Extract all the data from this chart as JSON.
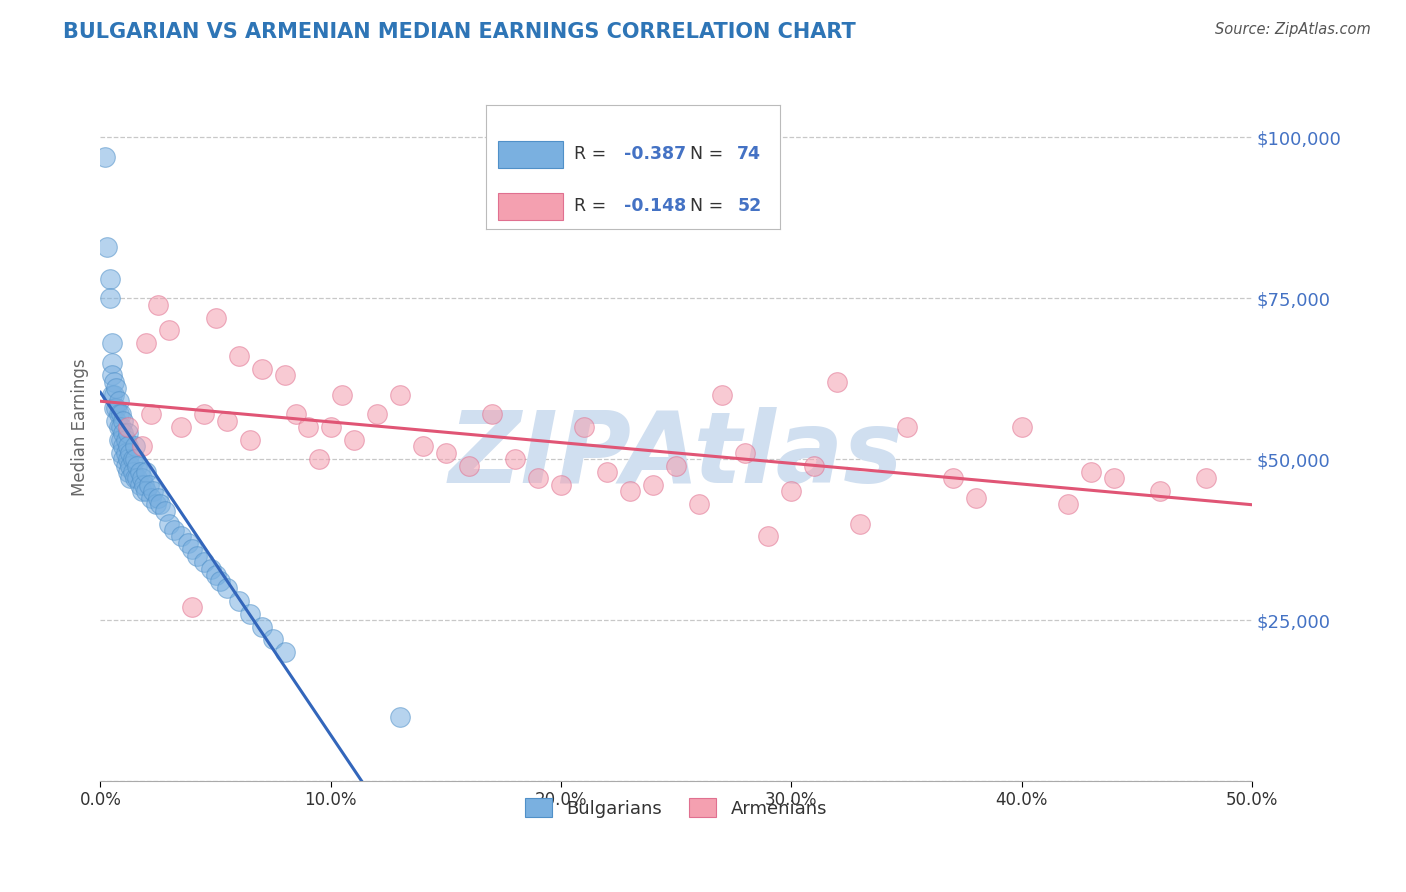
{
  "title": "BULGARIAN VS ARMENIAN MEDIAN EARNINGS CORRELATION CHART",
  "source": "Source: ZipAtlas.com",
  "ylabel": "Median Earnings",
  "xlim": [
    0.0,
    0.5
  ],
  "ylim": [
    0,
    110000
  ],
  "yticks": [
    0,
    25000,
    50000,
    75000,
    100000
  ],
  "ytick_labels": [
    "",
    "$25,000",
    "$50,000",
    "$75,000",
    "$100,000"
  ],
  "xticks": [
    0.0,
    0.1,
    0.2,
    0.3,
    0.4,
    0.5
  ],
  "xtick_labels": [
    "0.0%",
    "10.0%",
    "20.0%",
    "30.0%",
    "40.0%",
    "50.0%"
  ],
  "bg_color": "#ffffff",
  "grid_color": "#c8c8c8",
  "title_color": "#2e75b6",
  "axis_label_color": "#666666",
  "tick_label_color_y": "#4472c4",
  "tick_label_color_x": "#333333",
  "watermark": "ZIPAtlas",
  "watermark_color": "#d0dff0",
  "series1_color": "#7ab0e0",
  "series2_color": "#f4a0b0",
  "series1_edge": "#5090c8",
  "series2_edge": "#e07090",
  "trendline1_color": "#3366bb",
  "trendline2_color": "#e05575",
  "series1_label": "Bulgarians",
  "series2_label": "Armenians",
  "legend_text_color": "#333333",
  "legend_value_color": "#4472c4",
  "bulgarians_x": [
    0.002,
    0.003,
    0.004,
    0.004,
    0.005,
    0.005,
    0.005,
    0.005,
    0.006,
    0.006,
    0.006,
    0.007,
    0.007,
    0.007,
    0.008,
    0.008,
    0.008,
    0.008,
    0.009,
    0.009,
    0.009,
    0.009,
    0.01,
    0.01,
    0.01,
    0.01,
    0.011,
    0.011,
    0.011,
    0.012,
    0.012,
    0.012,
    0.012,
    0.013,
    0.013,
    0.013,
    0.014,
    0.014,
    0.015,
    0.015,
    0.015,
    0.016,
    0.016,
    0.017,
    0.017,
    0.018,
    0.018,
    0.019,
    0.02,
    0.02,
    0.021,
    0.022,
    0.023,
    0.024,
    0.025,
    0.026,
    0.028,
    0.03,
    0.032,
    0.035,
    0.038,
    0.04,
    0.042,
    0.045,
    0.048,
    0.05,
    0.052,
    0.055,
    0.06,
    0.065,
    0.07,
    0.075,
    0.08,
    0.13
  ],
  "bulgarians_y": [
    97000,
    83000,
    78000,
    75000,
    68000,
    65000,
    63000,
    60000,
    62000,
    60000,
    58000,
    61000,
    58000,
    56000,
    59000,
    57000,
    55000,
    53000,
    57000,
    55000,
    53000,
    51000,
    56000,
    54000,
    52000,
    50000,
    53000,
    51000,
    49000,
    54000,
    52000,
    50000,
    48000,
    51000,
    49000,
    47000,
    50000,
    48000,
    52000,
    50000,
    47000,
    49000,
    47000,
    48000,
    46000,
    47000,
    45000,
    46000,
    48000,
    45000,
    46000,
    44000,
    45000,
    43000,
    44000,
    43000,
    42000,
    40000,
    39000,
    38000,
    37000,
    36000,
    35000,
    34000,
    33000,
    32000,
    31000,
    30000,
    28000,
    26000,
    24000,
    22000,
    20000,
    10000
  ],
  "armenians_x": [
    0.012,
    0.018,
    0.02,
    0.022,
    0.025,
    0.03,
    0.035,
    0.04,
    0.045,
    0.05,
    0.055,
    0.06,
    0.065,
    0.07,
    0.08,
    0.085,
    0.09,
    0.095,
    0.1,
    0.105,
    0.11,
    0.12,
    0.13,
    0.14,
    0.15,
    0.16,
    0.17,
    0.18,
    0.19,
    0.2,
    0.21,
    0.22,
    0.23,
    0.24,
    0.25,
    0.26,
    0.27,
    0.28,
    0.29,
    0.3,
    0.31,
    0.32,
    0.33,
    0.35,
    0.37,
    0.38,
    0.4,
    0.42,
    0.43,
    0.44,
    0.46,
    0.48
  ],
  "armenians_y": [
    55000,
    52000,
    68000,
    57000,
    74000,
    70000,
    55000,
    27000,
    57000,
    72000,
    56000,
    66000,
    53000,
    64000,
    63000,
    57000,
    55000,
    50000,
    55000,
    60000,
    53000,
    57000,
    60000,
    52000,
    51000,
    49000,
    57000,
    50000,
    47000,
    46000,
    55000,
    48000,
    45000,
    46000,
    49000,
    43000,
    60000,
    51000,
    38000,
    45000,
    49000,
    62000,
    40000,
    55000,
    47000,
    44000,
    55000,
    43000,
    48000,
    47000,
    45000,
    47000
  ]
}
